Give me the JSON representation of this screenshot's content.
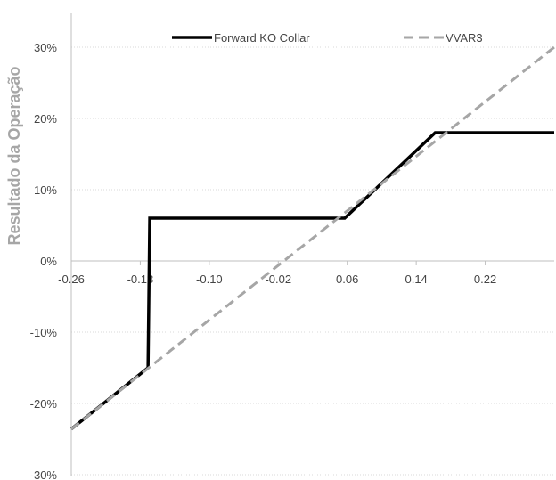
{
  "chart_data": {
    "type": "line",
    "title": "",
    "xlabel": "",
    "ylabel": "Resultado da Operação",
    "xlim": [
      -0.26,
      0.3
    ],
    "ylim": [
      -30,
      35
    ],
    "x_ticks": [
      "-0.26",
      "-0.18",
      "-0.10",
      "-0.02",
      "0.06",
      "0.14",
      "0.22"
    ],
    "x_tick_values": [
      -0.26,
      -0.18,
      -0.1,
      -0.02,
      0.06,
      0.14,
      0.22
    ],
    "y_ticks": [
      "-30%",
      "-20%",
      "-10%",
      "0%",
      "10%",
      "20%",
      "30%"
    ],
    "y_tick_values": [
      -30,
      -20,
      -10,
      0,
      10,
      20,
      30
    ],
    "grid": "horizontal",
    "legend": "top",
    "series": [
      {
        "name": "Forward KO Collar",
        "color": "#000000",
        "style": "solid",
        "x": [
          -0.26,
          -0.171,
          -0.169,
          0.0,
          0.057,
          0.162,
          0.3
        ],
        "y": [
          -23.6,
          -15.0,
          6.0,
          6.0,
          6.0,
          18.0,
          18.0
        ]
      },
      {
        "name": "VVAR3",
        "color": "#a6a6a6",
        "style": "dashed",
        "x": [
          -0.26,
          0.3
        ],
        "y": [
          -23.6,
          30.0
        ]
      }
    ]
  }
}
